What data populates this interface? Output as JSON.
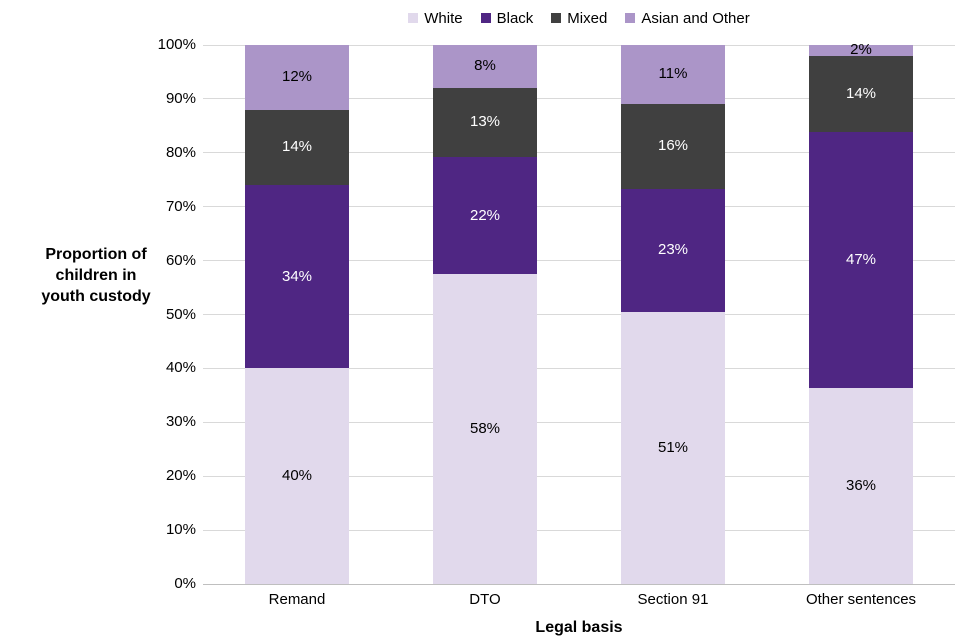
{
  "chart_data": {
    "type": "bar",
    "stacked": true,
    "orientation": "vertical",
    "xlabel": "Legal basis",
    "ylabel": "Proportion of children in youth custody",
    "ylabel_lines": [
      "Proportion of",
      "children in",
      "youth custody"
    ],
    "categories": [
      "Remand",
      "DTO",
      "Section 91",
      "Other sentences"
    ],
    "series": [
      {
        "name": "White",
        "color": "#e1d9ec",
        "label_color": "#000000",
        "values": [
          40,
          58,
          51,
          36
        ],
        "labels": [
          "40%",
          "58%",
          "51%",
          "36%"
        ]
      },
      {
        "name": "Black",
        "color": "#4f2683",
        "label_color": "#ffffff",
        "values": [
          34,
          22,
          23,
          47
        ],
        "labels": [
          "34%",
          "22%",
          "23%",
          "47%"
        ]
      },
      {
        "name": "Mixed",
        "color": "#404040",
        "label_color": "#ffffff",
        "values": [
          14,
          13,
          16,
          14
        ],
        "labels": [
          "14%",
          "13%",
          "16%",
          "14%"
        ]
      },
      {
        "name": "Asian and Other",
        "color": "#ab95c8",
        "label_color": "#000000",
        "values": [
          12,
          8,
          11,
          2
        ],
        "labels": [
          "12%",
          "8%",
          "11%",
          "2%"
        ]
      }
    ],
    "yticks": [
      "0%",
      "10%",
      "20%",
      "30%",
      "40%",
      "50%",
      "60%",
      "70%",
      "80%",
      "90%",
      "100%"
    ],
    "ylim": [
      0,
      100
    ],
    "grid": true,
    "legend_position": "top",
    "gridline_color": "#d9d9d9",
    "axis_line_color": "#bfbfbf"
  }
}
